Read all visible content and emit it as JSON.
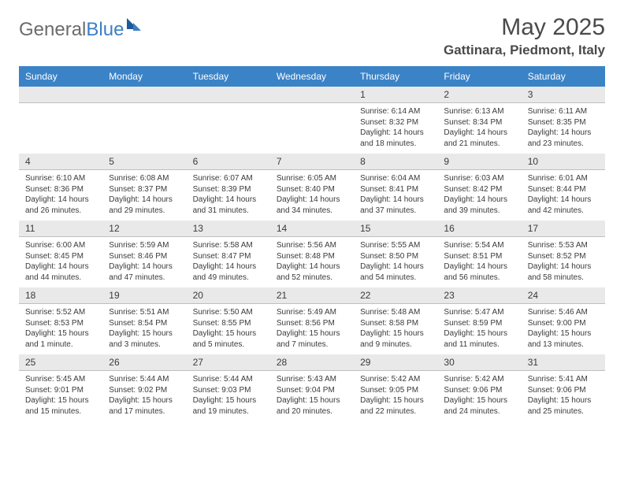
{
  "logo": {
    "text1": "General",
    "text2": "Blue"
  },
  "title": "May 2025",
  "location": "Gattinara, Piedmont, Italy",
  "header_bg": "#3b83c7",
  "daynum_bg": "#e9e9e9",
  "text_color": "#3a3a3a",
  "weekdays": [
    "Sunday",
    "Monday",
    "Tuesday",
    "Wednesday",
    "Thursday",
    "Friday",
    "Saturday"
  ],
  "weeks": [
    {
      "nums": [
        "",
        "",
        "",
        "",
        "1",
        "2",
        "3"
      ],
      "cells": [
        {},
        {},
        {},
        {},
        {
          "sunrise": "Sunrise: 6:14 AM",
          "sunset": "Sunset: 8:32 PM",
          "day1": "Daylight: 14 hours",
          "day2": "and 18 minutes."
        },
        {
          "sunrise": "Sunrise: 6:13 AM",
          "sunset": "Sunset: 8:34 PM",
          "day1": "Daylight: 14 hours",
          "day2": "and 21 minutes."
        },
        {
          "sunrise": "Sunrise: 6:11 AM",
          "sunset": "Sunset: 8:35 PM",
          "day1": "Daylight: 14 hours",
          "day2": "and 23 minutes."
        }
      ]
    },
    {
      "nums": [
        "4",
        "5",
        "6",
        "7",
        "8",
        "9",
        "10"
      ],
      "cells": [
        {
          "sunrise": "Sunrise: 6:10 AM",
          "sunset": "Sunset: 8:36 PM",
          "day1": "Daylight: 14 hours",
          "day2": "and 26 minutes."
        },
        {
          "sunrise": "Sunrise: 6:08 AM",
          "sunset": "Sunset: 8:37 PM",
          "day1": "Daylight: 14 hours",
          "day2": "and 29 minutes."
        },
        {
          "sunrise": "Sunrise: 6:07 AM",
          "sunset": "Sunset: 8:39 PM",
          "day1": "Daylight: 14 hours",
          "day2": "and 31 minutes."
        },
        {
          "sunrise": "Sunrise: 6:05 AM",
          "sunset": "Sunset: 8:40 PM",
          "day1": "Daylight: 14 hours",
          "day2": "and 34 minutes."
        },
        {
          "sunrise": "Sunrise: 6:04 AM",
          "sunset": "Sunset: 8:41 PM",
          "day1": "Daylight: 14 hours",
          "day2": "and 37 minutes."
        },
        {
          "sunrise": "Sunrise: 6:03 AM",
          "sunset": "Sunset: 8:42 PM",
          "day1": "Daylight: 14 hours",
          "day2": "and 39 minutes."
        },
        {
          "sunrise": "Sunrise: 6:01 AM",
          "sunset": "Sunset: 8:44 PM",
          "day1": "Daylight: 14 hours",
          "day2": "and 42 minutes."
        }
      ]
    },
    {
      "nums": [
        "11",
        "12",
        "13",
        "14",
        "15",
        "16",
        "17"
      ],
      "cells": [
        {
          "sunrise": "Sunrise: 6:00 AM",
          "sunset": "Sunset: 8:45 PM",
          "day1": "Daylight: 14 hours",
          "day2": "and 44 minutes."
        },
        {
          "sunrise": "Sunrise: 5:59 AM",
          "sunset": "Sunset: 8:46 PM",
          "day1": "Daylight: 14 hours",
          "day2": "and 47 minutes."
        },
        {
          "sunrise": "Sunrise: 5:58 AM",
          "sunset": "Sunset: 8:47 PM",
          "day1": "Daylight: 14 hours",
          "day2": "and 49 minutes."
        },
        {
          "sunrise": "Sunrise: 5:56 AM",
          "sunset": "Sunset: 8:48 PM",
          "day1": "Daylight: 14 hours",
          "day2": "and 52 minutes."
        },
        {
          "sunrise": "Sunrise: 5:55 AM",
          "sunset": "Sunset: 8:50 PM",
          "day1": "Daylight: 14 hours",
          "day2": "and 54 minutes."
        },
        {
          "sunrise": "Sunrise: 5:54 AM",
          "sunset": "Sunset: 8:51 PM",
          "day1": "Daylight: 14 hours",
          "day2": "and 56 minutes."
        },
        {
          "sunrise": "Sunrise: 5:53 AM",
          "sunset": "Sunset: 8:52 PM",
          "day1": "Daylight: 14 hours",
          "day2": "and 58 minutes."
        }
      ]
    },
    {
      "nums": [
        "18",
        "19",
        "20",
        "21",
        "22",
        "23",
        "24"
      ],
      "cells": [
        {
          "sunrise": "Sunrise: 5:52 AM",
          "sunset": "Sunset: 8:53 PM",
          "day1": "Daylight: 15 hours",
          "day2": "and 1 minute."
        },
        {
          "sunrise": "Sunrise: 5:51 AM",
          "sunset": "Sunset: 8:54 PM",
          "day1": "Daylight: 15 hours",
          "day2": "and 3 minutes."
        },
        {
          "sunrise": "Sunrise: 5:50 AM",
          "sunset": "Sunset: 8:55 PM",
          "day1": "Daylight: 15 hours",
          "day2": "and 5 minutes."
        },
        {
          "sunrise": "Sunrise: 5:49 AM",
          "sunset": "Sunset: 8:56 PM",
          "day1": "Daylight: 15 hours",
          "day2": "and 7 minutes."
        },
        {
          "sunrise": "Sunrise: 5:48 AM",
          "sunset": "Sunset: 8:58 PM",
          "day1": "Daylight: 15 hours",
          "day2": "and 9 minutes."
        },
        {
          "sunrise": "Sunrise: 5:47 AM",
          "sunset": "Sunset: 8:59 PM",
          "day1": "Daylight: 15 hours",
          "day2": "and 11 minutes."
        },
        {
          "sunrise": "Sunrise: 5:46 AM",
          "sunset": "Sunset: 9:00 PM",
          "day1": "Daylight: 15 hours",
          "day2": "and 13 minutes."
        }
      ]
    },
    {
      "nums": [
        "25",
        "26",
        "27",
        "28",
        "29",
        "30",
        "31"
      ],
      "cells": [
        {
          "sunrise": "Sunrise: 5:45 AM",
          "sunset": "Sunset: 9:01 PM",
          "day1": "Daylight: 15 hours",
          "day2": "and 15 minutes."
        },
        {
          "sunrise": "Sunrise: 5:44 AM",
          "sunset": "Sunset: 9:02 PM",
          "day1": "Daylight: 15 hours",
          "day2": "and 17 minutes."
        },
        {
          "sunrise": "Sunrise: 5:44 AM",
          "sunset": "Sunset: 9:03 PM",
          "day1": "Daylight: 15 hours",
          "day2": "and 19 minutes."
        },
        {
          "sunrise": "Sunrise: 5:43 AM",
          "sunset": "Sunset: 9:04 PM",
          "day1": "Daylight: 15 hours",
          "day2": "and 20 minutes."
        },
        {
          "sunrise": "Sunrise: 5:42 AM",
          "sunset": "Sunset: 9:05 PM",
          "day1": "Daylight: 15 hours",
          "day2": "and 22 minutes."
        },
        {
          "sunrise": "Sunrise: 5:42 AM",
          "sunset": "Sunset: 9:06 PM",
          "day1": "Daylight: 15 hours",
          "day2": "and 24 minutes."
        },
        {
          "sunrise": "Sunrise: 5:41 AM",
          "sunset": "Sunset: 9:06 PM",
          "day1": "Daylight: 15 hours",
          "day2": "and 25 minutes."
        }
      ]
    }
  ]
}
